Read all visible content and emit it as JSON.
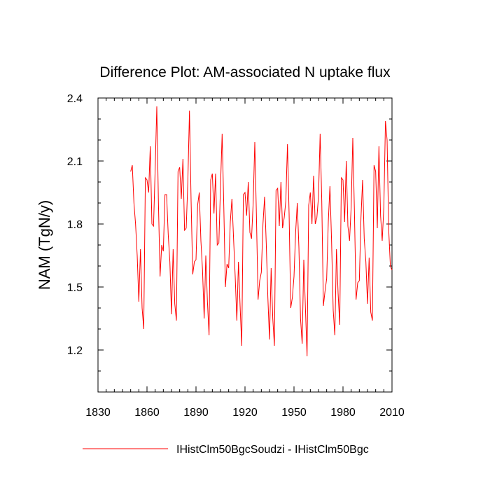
{
  "chart_data": {
    "type": "line",
    "title": "Difference Plot: AM-associated N uptake flux",
    "xlabel": "",
    "ylabel": "NAM  (TgN/y)",
    "xlim": [
      1830,
      2010
    ],
    "ylim": [
      1.0,
      2.4
    ],
    "xticks": [
      1830,
      1860,
      1890,
      1920,
      1950,
      1980,
      2010
    ],
    "yticks": [
      1.2,
      1.5,
      1.8,
      2.1,
      2.4
    ],
    "x_tick_labels": [
      "1830",
      "1860",
      "1890",
      "1920",
      "1950",
      "1980",
      "2010"
    ],
    "y_tick_labels": [
      "1.2",
      "1.5",
      "1.8",
      "2.1",
      "2.4"
    ],
    "grid": false,
    "legend_position": "bottom",
    "series": [
      {
        "name": "IHistClm50BgcSoudzi - IHistClm50Bgc",
        "color": "#ff0000",
        "x": [
          1850,
          1851,
          1852,
          1853,
          1854,
          1855,
          1856,
          1857,
          1858,
          1859,
          1860,
          1861,
          1862,
          1863,
          1864,
          1865,
          1866,
          1867,
          1868,
          1869,
          1870,
          1871,
          1872,
          1873,
          1874,
          1875,
          1876,
          1877,
          1878,
          1879,
          1880,
          1881,
          1882,
          1883,
          1884,
          1885,
          1886,
          1887,
          1888,
          1889,
          1890,
          1891,
          1892,
          1893,
          1894,
          1895,
          1896,
          1897,
          1898,
          1899,
          1900,
          1901,
          1902,
          1903,
          1904,
          1905,
          1906,
          1907,
          1908,
          1909,
          1910,
          1911,
          1912,
          1913,
          1914,
          1915,
          1916,
          1917,
          1918,
          1919,
          1920,
          1921,
          1922,
          1923,
          1924,
          1925,
          1926,
          1927,
          1928,
          1929,
          1930,
          1931,
          1932,
          1933,
          1934,
          1935,
          1936,
          1937,
          1938,
          1939,
          1940,
          1941,
          1942,
          1943,
          1944,
          1945,
          1946,
          1947,
          1948,
          1949,
          1950,
          1951,
          1952,
          1953,
          1954,
          1955,
          1956,
          1957,
          1958,
          1959,
          1960,
          1961,
          1962,
          1963,
          1964,
          1965,
          1966,
          1967,
          1968,
          1969,
          1970,
          1971,
          1972,
          1973,
          1974,
          1975,
          1976,
          1977,
          1978,
          1979,
          1980,
          1981,
          1982,
          1983,
          1984,
          1985,
          1986,
          1987,
          1988,
          1989,
          1990,
          1991,
          1992,
          1993,
          1994,
          1995,
          1996,
          1997,
          1998,
          1999,
          2000,
          2001,
          2002,
          2003,
          2004,
          2005,
          2006,
          2007,
          2008,
          2009,
          2010
        ],
        "values": [
          2.05,
          2.08,
          1.9,
          1.8,
          1.65,
          1.43,
          1.68,
          1.4,
          1.3,
          2.02,
          2.01,
          1.95,
          2.17,
          1.8,
          1.79,
          2.06,
          2.36,
          1.9,
          1.55,
          1.7,
          1.67,
          1.94,
          1.94,
          1.75,
          1.62,
          1.37,
          1.68,
          1.42,
          1.34,
          2.05,
          2.07,
          1.92,
          2.11,
          1.77,
          1.78,
          2.0,
          2.34,
          1.91,
          1.56,
          1.62,
          1.63,
          1.89,
          1.95,
          1.72,
          1.58,
          1.35,
          1.65,
          1.43,
          1.27,
          2.01,
          2.04,
          1.85,
          2.04,
          1.7,
          1.71,
          1.98,
          2.23,
          1.89,
          1.5,
          1.61,
          1.59,
          1.81,
          1.92,
          1.73,
          1.55,
          1.34,
          1.62,
          1.41,
          1.22,
          1.94,
          1.95,
          1.84,
          2.0,
          1.76,
          1.73,
          1.9,
          2.19,
          1.84,
          1.44,
          1.53,
          1.57,
          1.8,
          1.93,
          1.71,
          1.45,
          1.25,
          1.59,
          1.35,
          1.22,
          1.96,
          1.97,
          1.79,
          2.0,
          1.78,
          1.83,
          1.91,
          2.18,
          1.85,
          1.4,
          1.45,
          1.55,
          1.76,
          1.9,
          1.69,
          1.35,
          1.23,
          1.63,
          1.4,
          1.17,
          1.89,
          1.95,
          1.8,
          2.03,
          1.8,
          1.83,
          1.93,
          2.23,
          1.91,
          1.41,
          1.48,
          1.54,
          1.81,
          1.98,
          1.72,
          1.39,
          1.27,
          1.68,
          1.47,
          1.32,
          2.02,
          2.01,
          1.81,
          2.1,
          1.79,
          1.72,
          1.88,
          2.21,
          1.86,
          1.44,
          1.52,
          1.53,
          1.83,
          2.01,
          1.73,
          1.62,
          1.42,
          1.64,
          1.38,
          1.34,
          2.08,
          2.05,
          1.78,
          2.17,
          1.84,
          1.72,
          1.88,
          2.29,
          2.2,
          1.77,
          1.6,
          1.58
        ]
      }
    ]
  },
  "legend": {
    "entries": [
      {
        "label": "IHistClm50BgcSoudzi - IHistClm50Bgc",
        "color": "#ff0000"
      }
    ]
  }
}
